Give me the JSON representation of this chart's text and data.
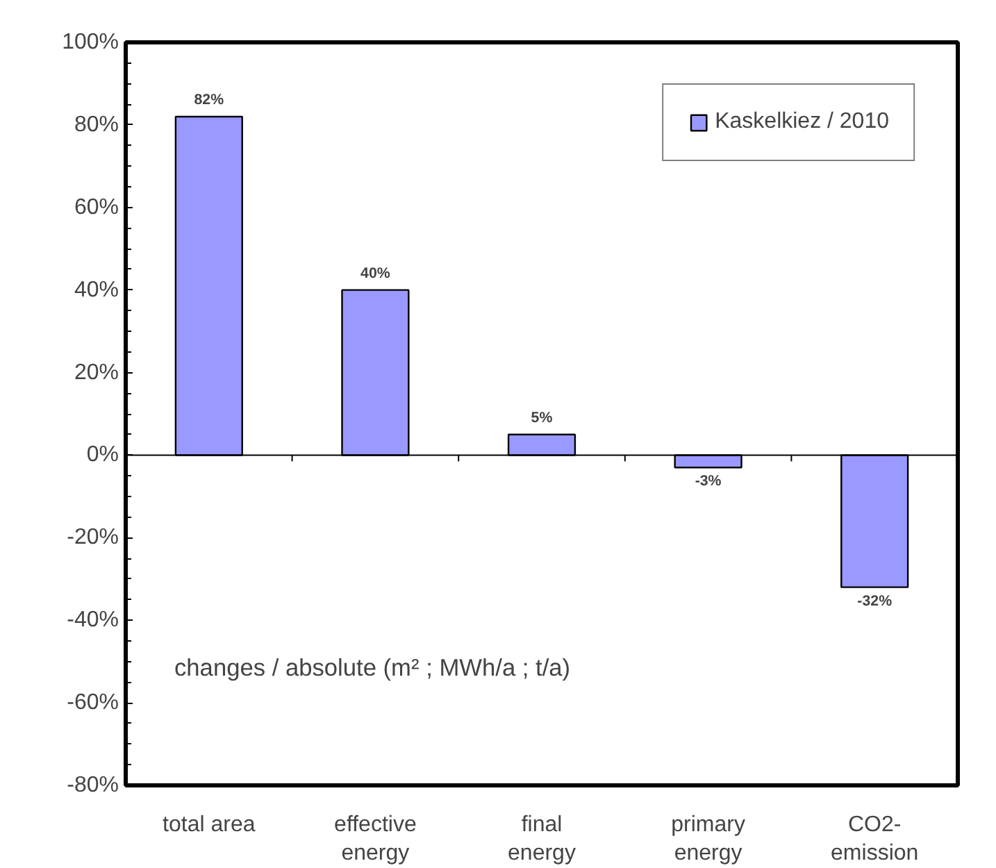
{
  "chart_data": {
    "type": "bar",
    "categories": [
      "total area",
      "effective\nenergy",
      "final\nenergy",
      "primary\nenergy",
      "CO2-\nemission"
    ],
    "series": [
      {
        "name": "Kaskelkiez / 2010",
        "color": "#9999ff",
        "values": [
          82,
          40,
          5,
          -3,
          -32
        ],
        "value_labels": [
          "82%",
          "40%",
          "5%",
          "-3%",
          "-32%"
        ]
      }
    ],
    "ylim": [
      -80,
      100
    ],
    "yticks": [
      {
        "value": -80,
        "label": "-80%"
      },
      {
        "value": -60,
        "label": "-60%"
      },
      {
        "value": -40,
        "label": "-40%"
      },
      {
        "value": -20,
        "label": "-20%"
      },
      {
        "value": 0,
        "label": "0%"
      },
      {
        "value": 20,
        "label": "20%"
      },
      {
        "value": 40,
        "label": "40%"
      },
      {
        "value": 60,
        "label": "60%"
      },
      {
        "value": 80,
        "label": "80%"
      },
      {
        "value": 100,
        "label": "100%"
      }
    ],
    "annotations": [
      "changes / absolute (m² ; MWh/a ; t/a)"
    ],
    "legend": "top right"
  }
}
